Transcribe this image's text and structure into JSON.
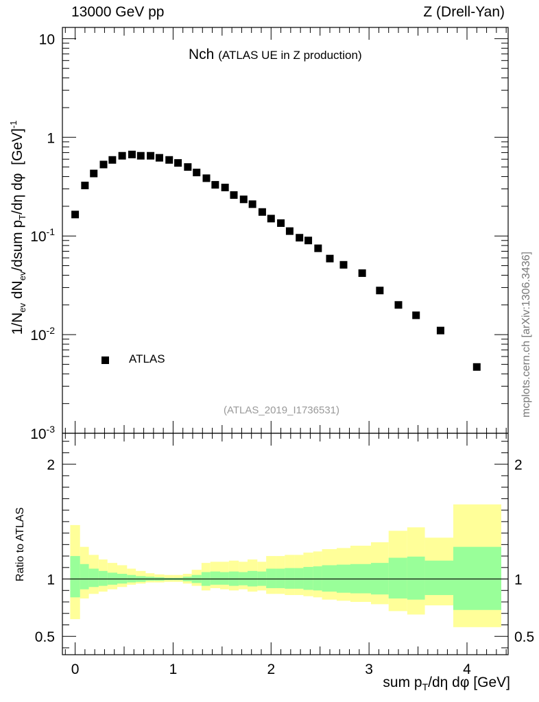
{
  "header": {
    "left_label": "13000 GeV pp",
    "right_label": "Z (Drell-Yan)"
  },
  "title": {
    "main": "Nch",
    "sub": "(ATLAS UE in Z production)"
  },
  "reference": "(ATLAS_2019_I1736531)",
  "side_label": "mcplots.cern.ch [arXiv:1306.3436]",
  "axes": {
    "ylabel_main": "1/N_{ev} dN_{ev}/dsum p_{T}/dη dφ  [GeV]^{-1}",
    "ylabel_ratio": "Ratio to ATLAS",
    "xlabel": "sum p_{T}/dη dφ [GeV]"
  },
  "legend": {
    "entries": [
      {
        "label": "ATLAS",
        "marker": "square",
        "color": "#000000"
      }
    ]
  },
  "colors": {
    "data_marker": "#000000",
    "band_inner": "#99ff99",
    "band_outer": "#ffff99",
    "ref_text": "#999999",
    "side_text": "#777777"
  },
  "chart_data": [
    {
      "type": "scatter",
      "panel": "main",
      "yscale": "log",
      "xlim": [
        -0.13,
        4.42
      ],
      "ylim": [
        0.001,
        13
      ],
      "xticks": [
        0,
        1,
        2,
        3,
        4
      ],
      "yticks_labels": [
        "10^{-3}",
        "10^{-2}",
        "10^{-1}",
        "1",
        "10"
      ],
      "series": [
        {
          "name": "ATLAS",
          "x": [
            0.0,
            0.1,
            0.19,
            0.29,
            0.38,
            0.48,
            0.58,
            0.67,
            0.77,
            0.86,
            0.96,
            1.05,
            1.15,
            1.24,
            1.34,
            1.43,
            1.53,
            1.62,
            1.72,
            1.81,
            1.91,
            2.0,
            2.1,
            2.19,
            2.29,
            2.38,
            2.48,
            2.6,
            2.74,
            2.93,
            3.11,
            3.3,
            3.48,
            3.73,
            4.1
          ],
          "y": [
            0.165,
            0.325,
            0.43,
            0.53,
            0.59,
            0.65,
            0.67,
            0.65,
            0.65,
            0.62,
            0.59,
            0.55,
            0.5,
            0.44,
            0.385,
            0.33,
            0.31,
            0.26,
            0.235,
            0.21,
            0.175,
            0.15,
            0.135,
            0.112,
            0.096,
            0.09,
            0.075,
            0.059,
            0.051,
            0.042,
            0.028,
            0.02,
            0.0157,
            0.011,
            0.0047
          ]
        }
      ]
    },
    {
      "type": "area",
      "panel": "ratio",
      "xlim": [
        -0.13,
        4.42
      ],
      "ylim": [
        0.34,
        2.27
      ],
      "xticks": [
        0,
        1,
        2,
        3,
        4
      ],
      "yticks": [
        0.5,
        1,
        2
      ],
      "reference_line": 1,
      "bin_edges": [
        -0.05,
        0.05,
        0.14,
        0.24,
        0.33,
        0.43,
        0.53,
        0.62,
        0.72,
        0.81,
        0.91,
        1.0,
        1.1,
        1.19,
        1.29,
        1.38,
        1.48,
        1.57,
        1.67,
        1.76,
        1.86,
        1.95,
        2.05,
        2.14,
        2.24,
        2.33,
        2.43,
        2.52,
        2.67,
        2.81,
        3.02,
        3.2,
        3.39,
        3.57,
        3.86,
        4.35
      ],
      "series": [
        {
          "name": "",
          "lower": [
            0.65,
            0.83,
            0.87,
            0.89,
            0.91,
            0.93,
            0.95,
            0.96,
            0.97,
            0.97,
            0.975,
            0.975,
            0.96,
            0.94,
            0.9,
            0.92,
            0.91,
            0.9,
            0.91,
            0.89,
            0.9,
            0.87,
            0.87,
            0.86,
            0.86,
            0.85,
            0.84,
            0.82,
            0.81,
            0.8,
            0.78,
            0.72,
            0.69,
            0.77,
            0.58
          ],
          "upper": [
            1.47,
            1.28,
            1.21,
            1.17,
            1.14,
            1.12,
            1.09,
            1.07,
            1.05,
            1.04,
            1.035,
            1.035,
            1.045,
            1.08,
            1.14,
            1.15,
            1.15,
            1.16,
            1.15,
            1.17,
            1.15,
            1.2,
            1.2,
            1.21,
            1.21,
            1.23,
            1.24,
            1.26,
            1.27,
            1.29,
            1.32,
            1.42,
            1.45,
            1.36,
            1.65
          ]
        },
        {
          "name": "",
          "lower": [
            0.84,
            0.91,
            0.93,
            0.94,
            0.95,
            0.96,
            0.97,
            0.975,
            0.985,
            0.985,
            0.99,
            0.99,
            0.98,
            0.965,
            0.94,
            0.95,
            0.95,
            0.94,
            0.945,
            0.935,
            0.94,
            0.92,
            0.92,
            0.915,
            0.915,
            0.905,
            0.9,
            0.89,
            0.88,
            0.875,
            0.865,
            0.83,
            0.82,
            0.86,
            0.73
          ],
          "upper": [
            1.2,
            1.13,
            1.09,
            1.07,
            1.055,
            1.045,
            1.035,
            1.025,
            1.02,
            1.015,
            1.01,
            1.01,
            1.02,
            1.035,
            1.06,
            1.065,
            1.06,
            1.065,
            1.06,
            1.07,
            1.065,
            1.09,
            1.09,
            1.095,
            1.095,
            1.105,
            1.11,
            1.12,
            1.125,
            1.13,
            1.14,
            1.185,
            1.195,
            1.16,
            1.28
          ]
        }
      ]
    }
  ]
}
